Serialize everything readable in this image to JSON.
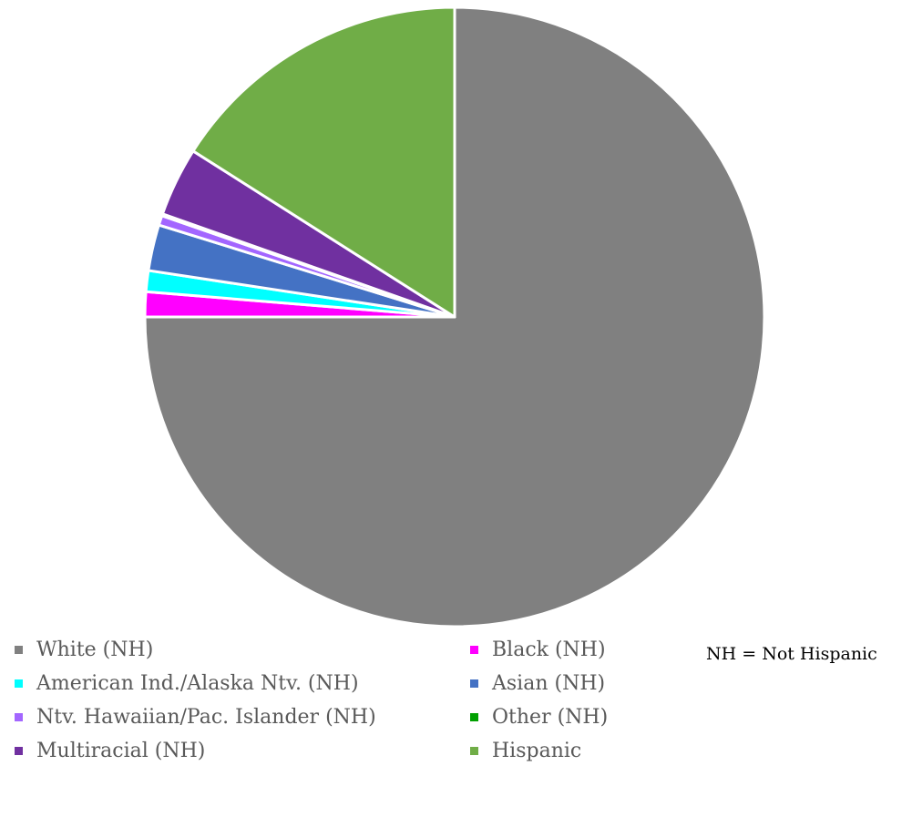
{
  "chart_data": {
    "type": "pie",
    "title": "",
    "start_angle_deg": 0,
    "direction": "clockwise",
    "slices": [
      {
        "label": "White (NH)",
        "value": 75.0,
        "color": "#808080"
      },
      {
        "label": "Black (NH)",
        "value": 1.3,
        "color": "#FF00FF"
      },
      {
        "label": "American Ind./Alaska Ntv. (NH)",
        "value": 1.1,
        "color": "#00FFFF"
      },
      {
        "label": "Asian (NH)",
        "value": 2.4,
        "color": "#4472C4"
      },
      {
        "label": "Ntv. Hawaiian/Pac. Islander (NH)",
        "value": 0.5,
        "color": "#A366FF"
      },
      {
        "label": "Other (NH)",
        "value": 0.1,
        "color": "#00A000"
      },
      {
        "label": "Multiracial (NH)",
        "value": 3.6,
        "color": "#7030A0"
      },
      {
        "label": "Hispanic",
        "value": 16.0,
        "color": "#70AD47"
      }
    ],
    "legend_position": "bottom",
    "annotation": "NH = Not Hispanic"
  }
}
